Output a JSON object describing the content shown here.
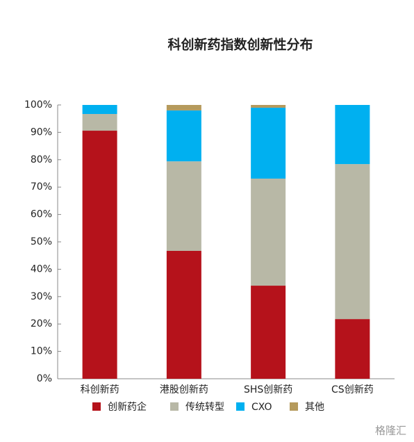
{
  "chart_data": {
    "type": "stacked_bar",
    "title": "科创新药指数创新性分布",
    "categories": [
      "科创新药",
      "港股创新药",
      "SHS创新药",
      "CS创新药"
    ],
    "series": [
      {
        "name": "创新药企",
        "color": "#b5121b",
        "values": [
          90.6,
          46.7,
          34.0,
          21.8
        ]
      },
      {
        "name": "传统转型",
        "color": "#b8b8a6",
        "values": [
          6.1,
          32.7,
          39.1,
          56.6
        ]
      },
      {
        "name": "CXO",
        "color": "#00b0f0",
        "values": [
          3.3,
          18.6,
          25.9,
          21.6
        ]
      },
      {
        "name": "其他",
        "color": "#b59a5c",
        "values": [
          0,
          2.0,
          1.0,
          0
        ]
      }
    ],
    "ylim": [
      0,
      100
    ],
    "yticks": [
      {
        "value": 0,
        "label": "0%"
      },
      {
        "value": 10,
        "label": "10%"
      },
      {
        "value": 20,
        "label": "20%"
      },
      {
        "value": 30,
        "label": "30%"
      },
      {
        "value": 40,
        "label": "40%"
      },
      {
        "value": 50,
        "label": "50%"
      },
      {
        "value": 60,
        "label": "60%"
      },
      {
        "value": 70,
        "label": "70%"
      },
      {
        "value": 80,
        "label": "80%"
      },
      {
        "value": 90,
        "label": "90%"
      },
      {
        "value": 100,
        "label": "100%"
      }
    ],
    "grid": false,
    "legend": "bottom",
    "watermark": "格隆汇"
  }
}
